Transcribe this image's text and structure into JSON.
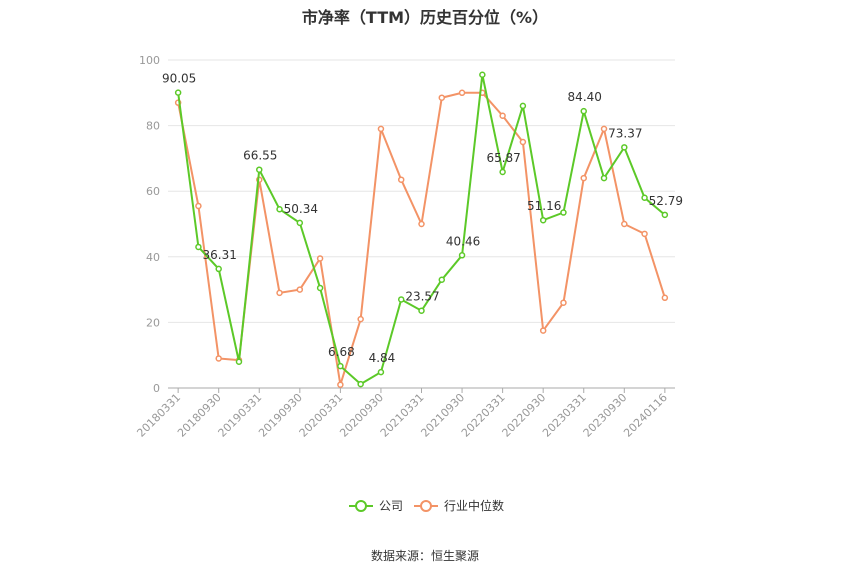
{
  "chart_data": {
    "type": "line",
    "title": "市净率（TTM）历史百分位（%）",
    "source": "数据来源：恒生聚源",
    "ylim": [
      0,
      100
    ],
    "yticks": [
      0,
      20,
      40,
      60,
      80,
      100
    ],
    "grid": true,
    "legend_position": "bottom-center",
    "xtick_labels": [
      "20180331",
      "20180930",
      "20190331",
      "20190930",
      "20200331",
      "20200930",
      "20210331",
      "20210930",
      "20220331",
      "20220930",
      "20230331",
      "20230930",
      "20240116"
    ],
    "series": [
      {
        "name": "公司",
        "color": "#5cc928",
        "values": [
          90.05,
          43.0,
          36.31,
          8.0,
          66.55,
          54.5,
          50.34,
          30.5,
          6.68,
          1.2,
          4.84,
          27.0,
          23.57,
          33.0,
          40.46,
          95.5,
          65.87,
          86.0,
          51.16,
          53.5,
          84.4,
          64.0,
          73.37,
          58.0,
          52.79
        ],
        "labels": [
          "90.05",
          "",
          "36.31",
          "",
          "66.55",
          "",
          "50.34",
          "",
          "6.68",
          "",
          "4.84",
          "",
          "23.57",
          "",
          "40.46",
          "",
          "65.87",
          "",
          "51.16",
          "",
          "84.40",
          "",
          "73.37",
          "",
          "52.79"
        ]
      },
      {
        "name": "行业中位数",
        "color": "#f39366",
        "values": [
          87.0,
          55.5,
          9.0,
          8.5,
          63.5,
          29.0,
          30.0,
          39.5,
          1.0,
          21.0,
          79.0,
          63.5,
          50.0,
          88.5,
          90.0,
          90.0,
          83.0,
          75.0,
          17.5,
          26.0,
          64.0,
          79.0,
          50.0,
          47.0,
          27.5
        ]
      }
    ]
  }
}
